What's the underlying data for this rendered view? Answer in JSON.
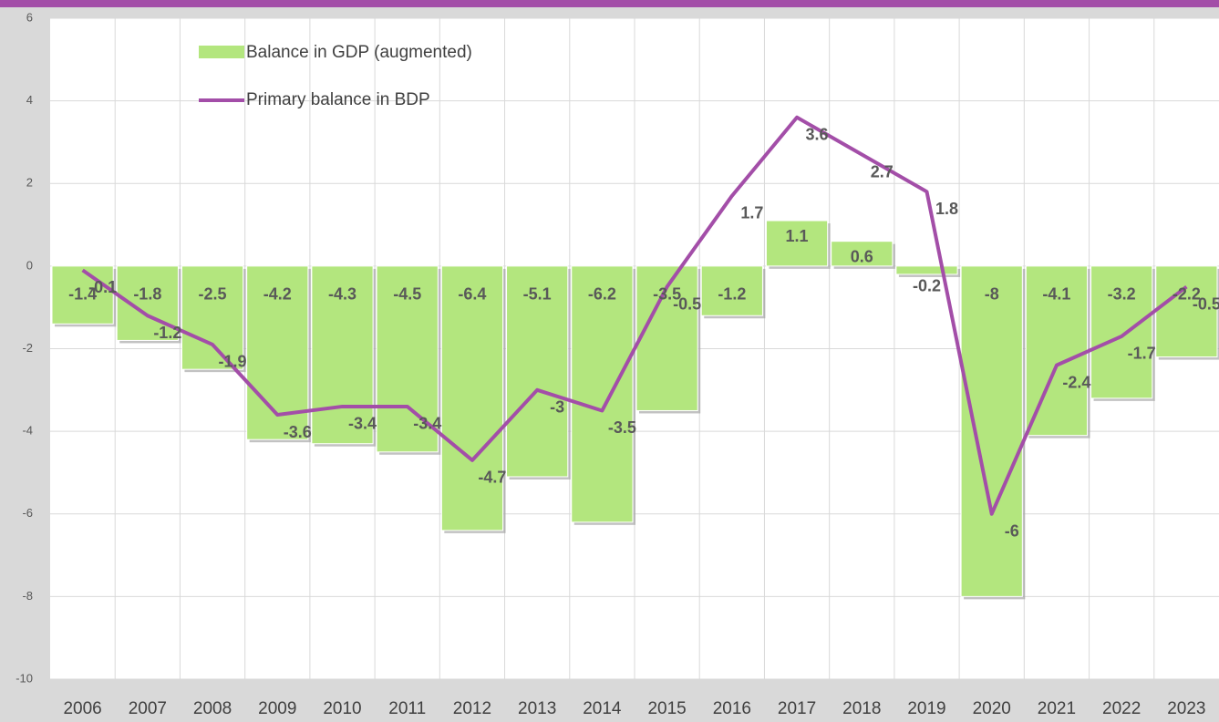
{
  "chart_data": {
    "type": "bar_line",
    "categories": [
      "2006",
      "2007",
      "2008",
      "2009",
      "2010",
      "2011",
      "2012",
      "2013",
      "2014",
      "2015",
      "2016",
      "2017",
      "2018",
      "2019",
      "2020",
      "2021",
      "2022",
      "2023"
    ],
    "series": [
      {
        "name": "Balance in GDP (augmented)",
        "type": "bar",
        "color": "#b3e67e",
        "values": [
          -1.4,
          -1.8,
          -2.5,
          -4.2,
          -4.3,
          -4.5,
          -6.4,
          -5.1,
          -6.2,
          -3.5,
          -1.2,
          1.1,
          0.6,
          -0.2,
          -8.0,
          -4.1,
          -3.2,
          -2.2
        ]
      },
      {
        "name": "Primary balance in BDP",
        "type": "line",
        "color": "#a34ea8",
        "values": [
          -0.1,
          -1.2,
          -1.9,
          -3.6,
          -3.4,
          -3.4,
          -4.7,
          -3.0,
          -3.5,
          -0.5,
          1.7,
          3.6,
          2.7,
          1.8,
          -6.0,
          -2.4,
          -1.7,
          -0.5
        ]
      }
    ],
    "ylim": [
      -10,
      6
    ],
    "yticks": [
      -10,
      -8,
      -6,
      -4,
      -2,
      0,
      2,
      4,
      6
    ],
    "grid": true
  }
}
